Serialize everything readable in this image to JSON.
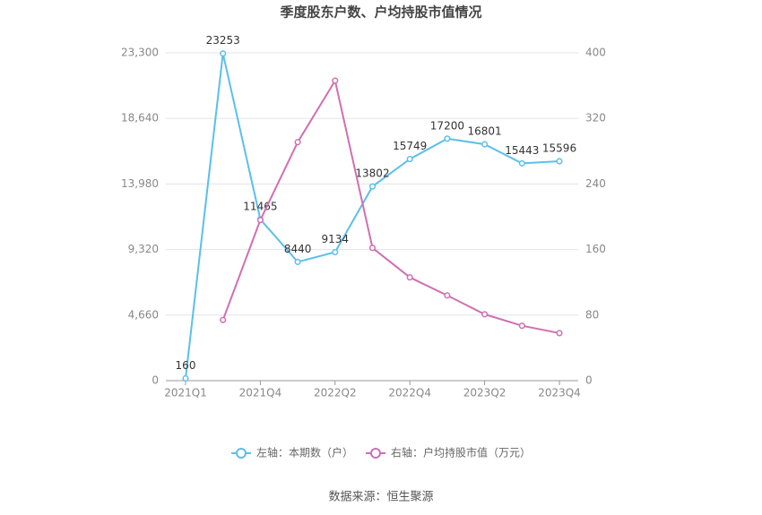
{
  "chart_data": {
    "type": "line",
    "title": "季度股东户数、户均持股市值情况",
    "categories": [
      "2021Q1",
      null,
      "2021Q4",
      null,
      "2022Q2",
      null,
      "2022Q4",
      null,
      "2023Q2",
      null,
      "2023Q4"
    ],
    "series": [
      {
        "name": "左轴：本期数（户）",
        "color": "#5bbfea",
        "values": [
          160,
          23253,
          11465,
          8440,
          9134,
          13802,
          15749,
          17200,
          16801,
          15443,
          15596
        ]
      },
      {
        "name": "右轴：户均持股市值（万元）",
        "color": "#d06fb2",
        "axis": "y2",
        "values": [
          null,
          74,
          196,
          291,
          366,
          162,
          126,
          104,
          81,
          67,
          58
        ]
      }
    ],
    "ylim": [
      0,
      23300
    ],
    "yticks": [
      0,
      {
        "value": 4660,
        "label": "4,660"
      },
      {
        "value": 9320,
        "label": "9,320"
      },
      {
        "value": 13980,
        "label": "13,980"
      },
      {
        "value": 18640,
        "label": "18,640"
      },
      {
        "value": 23300,
        "label": "23,300"
      }
    ],
    "y2lim": [
      0,
      400
    ],
    "y2ticks": [
      0,
      80,
      160,
      240,
      320,
      400
    ],
    "grid": true,
    "source": "数据来源：恒生聚源"
  }
}
